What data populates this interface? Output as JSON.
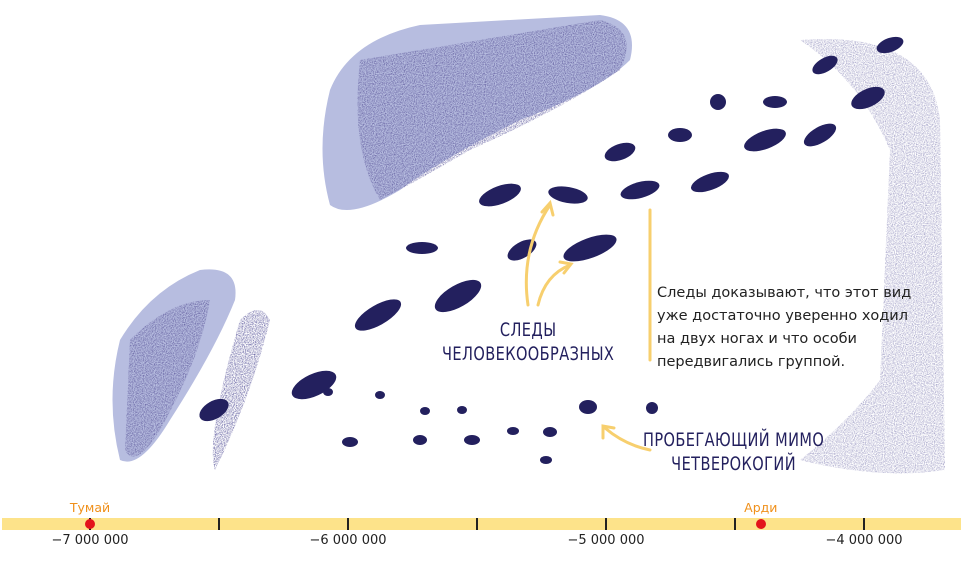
{
  "illustration": {
    "label_hominin": [
      "СЛЕДЫ",
      "ЧЕЛОВЕКООБРАЗНЫХ"
    ],
    "label_quadruped": [
      "ПРОБЕГАЮЩИЙ МИМО",
      "ЧЕТВЕРОКОГИЙ"
    ],
    "note": "Следы доказывают, что этот вид уже достаточно уверенно ходил на двух ногах и что особи передвигались группой.",
    "colors": {
      "ink": "#23205e",
      "pale": "#b7bde0",
      "arrow": "#f7cf6e"
    }
  },
  "timeline": {
    "range": [
      -7250000,
      -3850000
    ],
    "ticks": [
      -7000000,
      -6500000,
      -6000000,
      -5500000,
      -5000000,
      -4500000,
      -4000000
    ],
    "tick_labels": [
      "−7 000 000",
      "−6 000 000",
      "−5 000 000",
      "−4 000 000"
    ],
    "labeled_ticks": [
      -7000000,
      -6000000,
      -5000000,
      -4000000
    ],
    "events": [
      {
        "label": "Тумай",
        "year": -7000000
      },
      {
        "label": "Арди",
        "year": -4400000
      }
    ],
    "colors": {
      "bar": "#fde38a",
      "dot": "#e3141b",
      "label": "#f0901a"
    }
  }
}
